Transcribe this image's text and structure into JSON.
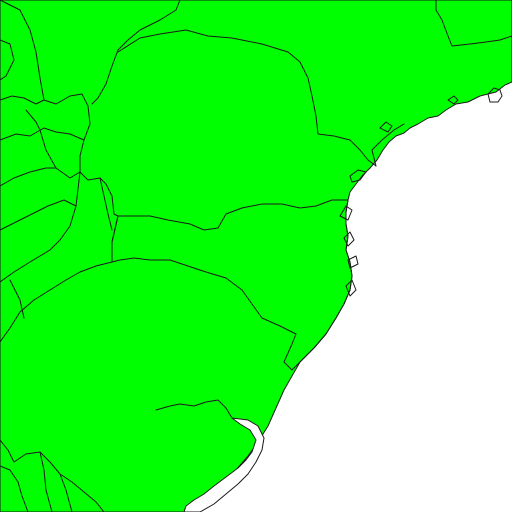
{
  "map": {
    "colors": {
      "sea": "#ffffff",
      "category_a": "#00ff00",
      "category_b": "#ff0000",
      "border": "#1a1a1a"
    },
    "regions": [
      {
        "id": "region-north-west",
        "category": "b"
      },
      {
        "id": "region-north-central",
        "category": "a"
      },
      {
        "id": "region-north-east",
        "category": "a"
      },
      {
        "id": "region-central-band",
        "category": "b"
      },
      {
        "id": "region-south",
        "category": "a"
      },
      {
        "id": "region-south-west",
        "category": "b"
      },
      {
        "id": "region-coast-islet",
        "category": "b"
      }
    ]
  }
}
